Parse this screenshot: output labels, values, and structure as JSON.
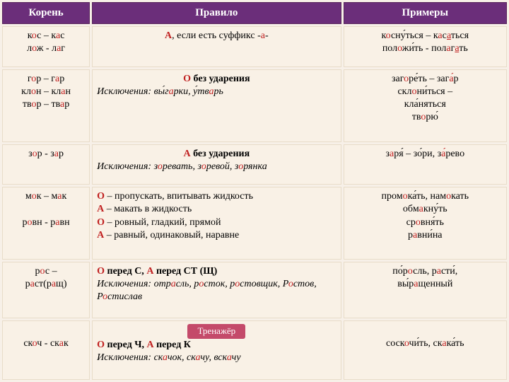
{
  "headers": {
    "root": "Корень",
    "rule": "Правило",
    "ex": "Примеры"
  },
  "rows": [
    {
      "root": "к<span class='red'>о</span>с – к<span class='red'>а</span>с<br>л<span class='red'>о</span>ж - л<span class='red'>а</span>г",
      "rule": "<div class='ctr'><b><span class='red'>А</span></b>, если есть суффикс -<span class='red'>а</span>-</div>",
      "ex": "к<span class='red'>о</span>сну́ться – к<span class='red'>а</span>с<span class='red under'>а</span>ться<br>пол<span class='red'>о</span>жи́ть - пол<span class='red'>а</span>г<span class='red under'>а</span>ть"
    },
    {
      "root": "г<span class='red'>о</span>р – г<span class='red'>а</span>р<br>кл<span class='red'>о</span>н – кл<span class='red'>а</span>н<br>тв<span class='red'>о</span>р – тв<span class='red'>а</span>р",
      "rule": "<div class='ctr'><b><span class='red'>О</span> без ударения</b></div><div class='ex'>Исключения: вы́г<span class='red'>а</span>рки, у́тв<span class='red'>а</span>рь</div>",
      "ex": "заг<span class='red'>о</span>ре́ть – заг<span class='red'>а</span>́р<br>скл<span class='red'>о</span>ни́ться –<br>кла́няться<br>тв<span class='red'>о</span>рю́"
    },
    {
      "root": "з<span class='red'>о</span>р - з<span class='red'>а</span>р",
      "rule": "<div class='ctr'><b><span class='red'>А</span> без ударения</b></div><div class='ex'>Исключения: з<span class='red'>о</span>ревать, з<span class='red'>о</span>ревой, з<span class='red'>о</span>рянка</div>",
      "ex": "з<span class='red'>а</span>ря́ – зо́ри, з<span class='red'>а</span>́рево"
    },
    {
      "root": "м<span class='red'>о</span>к – м<span class='red'>а</span>к<br><br>р<span class='red'>о</span>вн - р<span class='red'>а</span>вн",
      "rule": "<b><span class='red'>О</span></b> – пропускать, впитывать жидкость<br><b><span class='red'>А</span></b> – макать в жидкость<br><b><span class='red'>О</span></b> – ровный, гладкий, прямой<br><b><span class='red'>А</span></b> – равный, одинаковый, наравне",
      "ex": "пром<span class='red'>о</span>ка́ть, нам<span class='red'>о</span>кать<br>обм<span class='red'>а</span>кну́ть<br>ср<span class='red'>о</span>вня́ть<br>р<span class='red'>а</span>вни́на"
    },
    {
      "root": "р<span class='red'>о</span>с –<br>р<span class='red'>а</span>ст(р<span class='red'>а</span>щ)",
      "rule": "<b><span class='red'>О</span> перед С, <span class='red'>А</span> перед СТ (Щ)</b><br><span class='ex'>Исключения: отр<span class='red'>а</span>сль, р<span class='red'>о</span>сток, р<span class='red'>о</span>стовщик, Р<span class='red'>о</span>стов, Р<span class='red'>о</span>стислав</span>",
      "ex": "по́р<span class='red'>о</span>сль, р<span class='red'>а</span>сти́,<br>вы́р<span class='red'>а</span>щенный"
    },
    {
      "root": "<br>ск<span class='red'>о</span>ч - ск<span class='red'>а</span>к",
      "rule": "<div class='ctr'><span class='btn'>Тренажёр</span></div><b><span class='red'>О</span> перед Ч, <span class='red'>А</span> перед К</b><br><span class='ex'>Исключения: ск<span class='red'>а</span>чок, ск<span class='red'>а</span>чу, вск<span class='red'>а</span>чу</span>",
      "ex": "<br>соск<span class='red'>о</span>чи́ть, ск<span class='red'>а</span>ка́ть"
    }
  ],
  "colors": {
    "header_bg": "#6b2e7a",
    "cell_bg": "#f9f1e6",
    "accent": "#c02020",
    "body_bg": "#f7f0e8",
    "btn_bg": "#c44a6a"
  }
}
